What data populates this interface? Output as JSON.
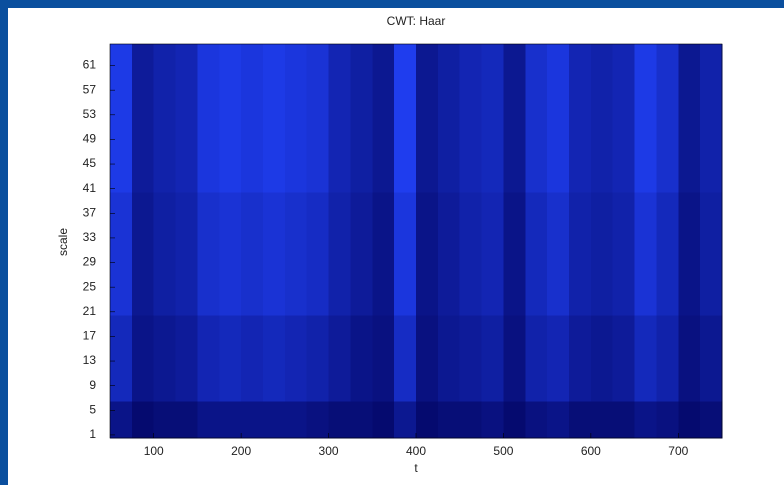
{
  "chart_data": {
    "type": "heatmap",
    "title": "CWT: Haar",
    "x_label": "t",
    "y_label": "scale",
    "xlim": [
      50,
      750
    ],
    "ylim": [
      0.5,
      64.5
    ],
    "xticks": [
      100,
      200,
      300,
      400,
      500,
      600,
      700
    ],
    "yticks": [
      1,
      5,
      9,
      13,
      17,
      21,
      25,
      29,
      33,
      37,
      41,
      45,
      49,
      53,
      57,
      61
    ],
    "colormap": [
      "#000055",
      "#2244ff"
    ],
    "x_edges": [
      50,
      75,
      100,
      125,
      150,
      175,
      200,
      225,
      250,
      275,
      300,
      325,
      350,
      375,
      400,
      425,
      450,
      475,
      500,
      525,
      550,
      575,
      600,
      625,
      650,
      675,
      700,
      725,
      750
    ],
    "y_edges": [
      0.5,
      6.5,
      20.5,
      40.5,
      64.5
    ],
    "z": [
      [
        0.3,
        0.15,
        0.2,
        0.2,
        0.3,
        0.3,
        0.3,
        0.3,
        0.3,
        0.25,
        0.2,
        0.2,
        0.15,
        0.35,
        0.15,
        0.2,
        0.2,
        0.25,
        0.15,
        0.25,
        0.3,
        0.2,
        0.2,
        0.2,
        0.3,
        0.25,
        0.15,
        0.2
      ],
      [
        0.6,
        0.3,
        0.35,
        0.4,
        0.55,
        0.6,
        0.55,
        0.6,
        0.55,
        0.5,
        0.4,
        0.3,
        0.25,
        0.65,
        0.25,
        0.35,
        0.4,
        0.45,
        0.25,
        0.5,
        0.55,
        0.4,
        0.35,
        0.4,
        0.6,
        0.5,
        0.25,
        0.35
      ],
      [
        0.75,
        0.35,
        0.45,
        0.5,
        0.7,
        0.75,
        0.7,
        0.75,
        0.7,
        0.65,
        0.5,
        0.4,
        0.3,
        0.8,
        0.3,
        0.4,
        0.5,
        0.55,
        0.3,
        0.6,
        0.7,
        0.5,
        0.45,
        0.5,
        0.75,
        0.6,
        0.3,
        0.45
      ],
      [
        0.85,
        0.4,
        0.5,
        0.55,
        0.8,
        0.85,
        0.8,
        0.85,
        0.8,
        0.75,
        0.55,
        0.45,
        0.35,
        0.9,
        0.35,
        0.45,
        0.55,
        0.6,
        0.35,
        0.7,
        0.8,
        0.55,
        0.5,
        0.55,
        0.85,
        0.7,
        0.35,
        0.5
      ]
    ]
  }
}
